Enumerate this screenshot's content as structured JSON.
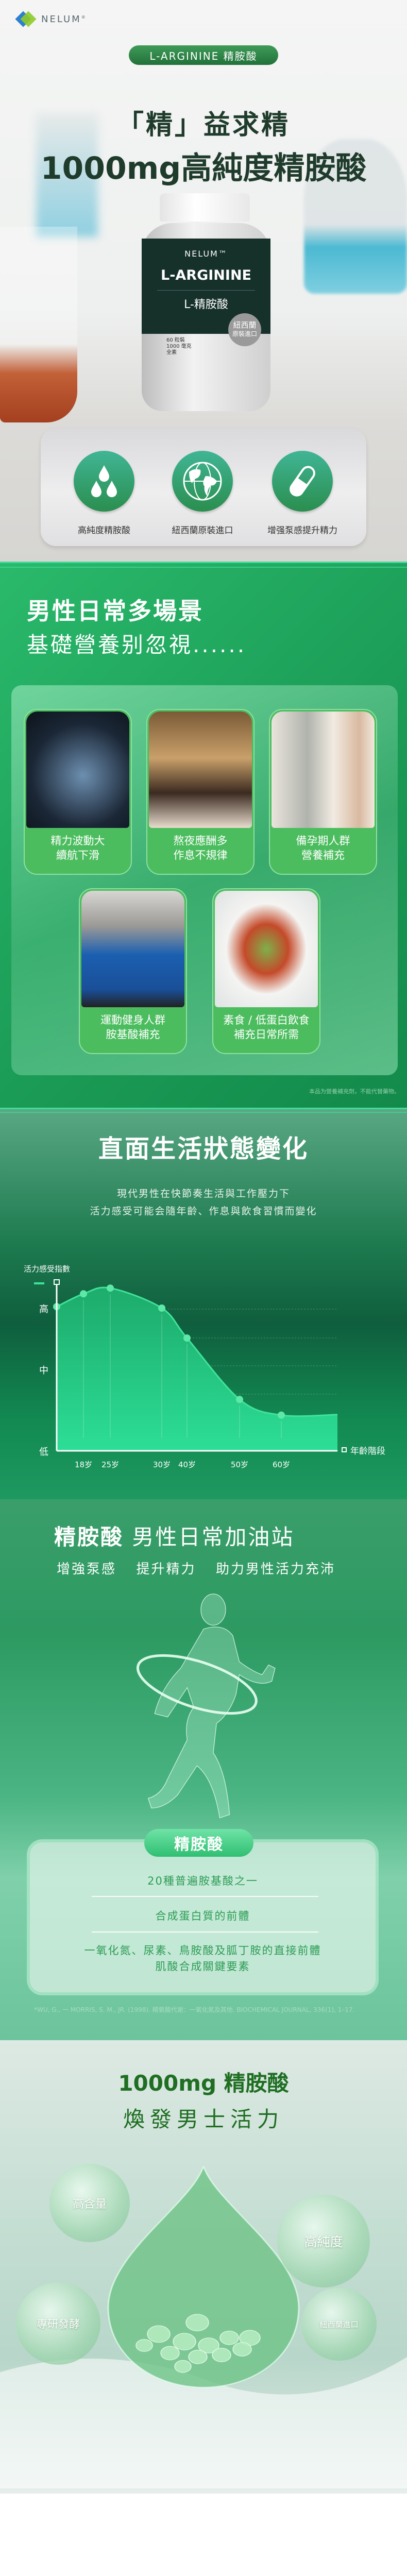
{
  "brand": {
    "name": "NELUM",
    "registered": "®"
  },
  "hero": {
    "badge": "L-ARGININE 精胺酸",
    "title_line1": "「精」益求精",
    "title_line2": "1000mg高純度精胺酸",
    "bottle": {
      "brand": "NELUM™",
      "name_en": "L-ARGININE",
      "name_zh": "L-精胺酸",
      "seal_line1": "紐西蘭",
      "seal_line2": "原裝進口",
      "spec": [
        "60 粒裝",
        "1000 毫克",
        "全素"
      ]
    }
  },
  "features": [
    {
      "icon": "droplets-icon",
      "label": "高純度精胺酸"
    },
    {
      "icon": "globe-icon",
      "label": "紐西蘭原裝進口"
    },
    {
      "icon": "capsule-icon",
      "label": "增强泵感提升精力"
    }
  ],
  "scenes": {
    "title": "男性日常多場景",
    "subtitle": "基礎營養别忽視......",
    "items": [
      {
        "line1": "精力波動大",
        "line2": "續航下滑"
      },
      {
        "line1": "熬夜應酬多",
        "line2": "作息不規律"
      },
      {
        "line1": "備孕期人群",
        "line2": "營養補充"
      },
      {
        "line1": "運動健身人群",
        "line2": "胺基酸補充"
      },
      {
        "line1": "素食 / 低蛋白飲食",
        "line2": "補充日常所需"
      }
    ],
    "disclaimer": "本品为營養補充劑，不能代替藥物。"
  },
  "vitality": {
    "title": "直面生活狀態變化",
    "subtitle_line1": "現代男性在快節奏生活與工作壓力下",
    "subtitle_line2": "活力感受可能会隨年齡、作息與飲食習慣而變化"
  },
  "chart_data": {
    "type": "area",
    "ylabel": "活力感受指數",
    "xlabel": "年齡階段",
    "y_ticks": [
      {
        "label": "高",
        "value": 100
      },
      {
        "label": "中",
        "value": 57
      },
      {
        "label": "低",
        "value": 0
      }
    ],
    "categories": [
      "",
      "18岁",
      "25岁",
      "30岁",
      "40岁",
      "50岁",
      "60岁"
    ],
    "values": [
      101,
      110,
      114,
      100,
      79,
      36,
      25
    ],
    "ylim": [
      0,
      115
    ],
    "grid": true,
    "colors": {
      "line": "#3fe39a",
      "fill": "#2ee29a"
    }
  },
  "runner": {
    "title_bold": "精胺酸",
    "title_rest": " 男性日常加油站",
    "subtitle": "增強泵感  提升精力  助力男性活力充沛",
    "badge": "精胺酸",
    "points": [
      "20種普遍胺基酸之一",
      "合成蛋白質的前體",
      "一氧化氮、尿素、鳥胺酸及胍丁胺的直接前體",
      "肌酸合成關鍵要素"
    ],
    "citation": "*WU, G., 一 MORRIS, S. M., JR. (1998). 精氨酸代谢：一氧化氮及其他. BIOCHEMICAL JOURNAL, 336(1), 1–17."
  },
  "drop": {
    "title_line1": "1000mg 精胺酸",
    "title_line2": "煥發男士活力",
    "bubbles": [
      "高含量",
      "高純度",
      "專研發酵",
      "紐西蘭進口"
    ]
  },
  "colors": {
    "brand_green": "#21713a",
    "dark_text": "#1f3b2c",
    "accent_mint": "#3fdc9a"
  }
}
